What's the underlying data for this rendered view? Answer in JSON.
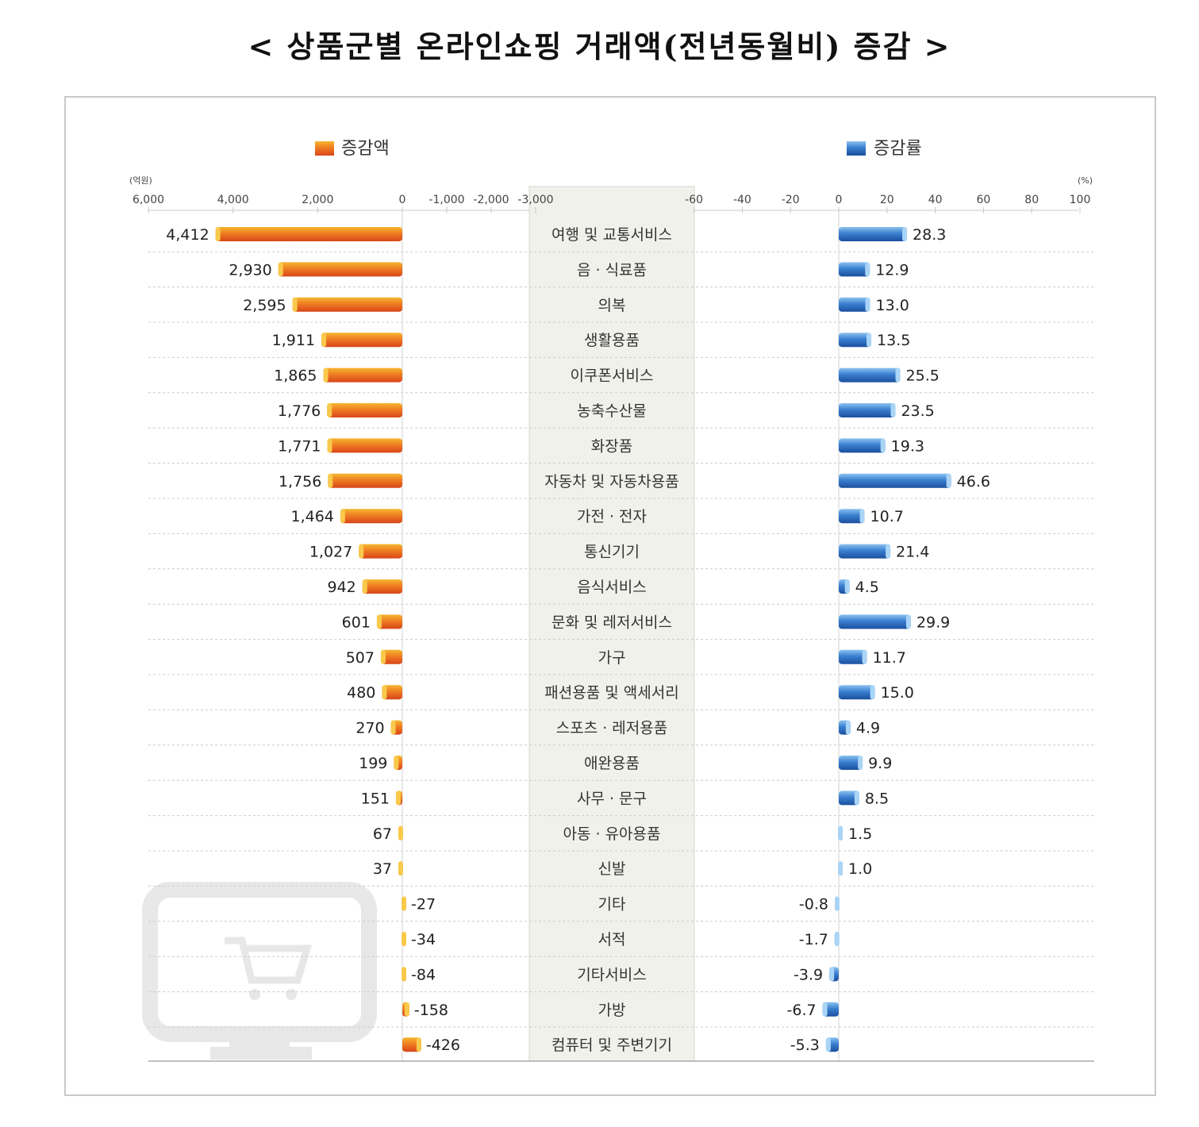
{
  "title": "< 상품군별 온라인쇼핑 거래액(전년동월비) 증감 >",
  "legend": {
    "amount_label": "증감액",
    "rate_label": "증감률"
  },
  "colors": {
    "amount_bar_main": "#e8561e",
    "amount_bar_light": "#f6b631",
    "rate_bar_main": "#1e5aad",
    "rate_bar_light": "#8cc2f0",
    "center_band": "#f1f1ec",
    "grid": "#bdbdbd"
  },
  "chart_data": [
    {
      "type": "bar",
      "orientation": "horizontal",
      "name": "증감액",
      "unit_label": "(억원)",
      "reversed_axis": true,
      "xlim": [
        6000,
        -3000
      ],
      "ticks": [
        "6,000",
        "4,000",
        "2,000",
        "0",
        "-1,000",
        "-2,000",
        "-3,000"
      ],
      "tick_values": [
        6000,
        4000,
        2000,
        0,
        -1000,
        -2000,
        -3000
      ],
      "categories": [
        "여행 및 교통서비스",
        "음 · 식료품",
        "의복",
        "생활용품",
        "이쿠폰서비스",
        "농축수산물",
        "화장품",
        "자동차 및 자동차용품",
        "가전 · 전자",
        "통신기기",
        "음식서비스",
        "문화 및 레저서비스",
        "가구",
        "패션용품 및 액세서리",
        "스포츠 · 레저용품",
        "애완용품",
        "사무 · 문구",
        "아동 · 유아용품",
        "신발",
        "기타",
        "서적",
        "기타서비스",
        "가방",
        "컴퓨터 및 주변기기"
      ],
      "values": [
        4412,
        2930,
        2595,
        1911,
        1865,
        1776,
        1771,
        1756,
        1464,
        1027,
        942,
        601,
        507,
        480,
        270,
        199,
        151,
        67,
        37,
        -27,
        -34,
        -84,
        -158,
        -426
      ],
      "labels": [
        "4,412",
        "2,930",
        "2,595",
        "1,911",
        "1,865",
        "1,776",
        "1,771",
        "1,756",
        "1,464",
        "1,027",
        "942",
        "601",
        "507",
        "480",
        "270",
        "199",
        "151",
        "67",
        "37",
        "-27",
        "-34",
        "-84",
        "-158",
        "-426"
      ]
    },
    {
      "type": "bar",
      "orientation": "horizontal",
      "name": "증감률",
      "unit_label": "(%)",
      "xlim": [
        -60,
        100
      ],
      "ticks": [
        "-60",
        "-40",
        "-20",
        "0",
        "20",
        "40",
        "60",
        "80",
        "100"
      ],
      "tick_values": [
        -60,
        -40,
        -20,
        0,
        20,
        40,
        60,
        80,
        100
      ],
      "categories": [
        "여행 및 교통서비스",
        "음 · 식료품",
        "의복",
        "생활용품",
        "이쿠폰서비스",
        "농축수산물",
        "화장품",
        "자동차 및 자동차용품",
        "가전 · 전자",
        "통신기기",
        "음식서비스",
        "문화 및 레저서비스",
        "가구",
        "패션용품 및 액세서리",
        "스포츠 · 레저용품",
        "애완용품",
        "사무 · 문구",
        "아동 · 유아용품",
        "신발",
        "기타",
        "서적",
        "기타서비스",
        "가방",
        "컴퓨터 및 주변기기"
      ],
      "values": [
        28.3,
        12.9,
        13.0,
        13.5,
        25.5,
        23.5,
        19.3,
        46.6,
        10.7,
        21.4,
        4.5,
        29.9,
        11.7,
        15.0,
        4.9,
        9.9,
        8.5,
        1.5,
        1.0,
        -0.8,
        -1.7,
        -3.9,
        -6.7,
        -5.3
      ],
      "labels": [
        "28.3",
        "12.9",
        "13.0",
        "13.5",
        "25.5",
        "23.5",
        "19.3",
        "46.6",
        "10.7",
        "21.4",
        "4.5",
        "29.9",
        "11.7",
        "15.0",
        "4.9",
        "9.9",
        "8.5",
        "1.5",
        "1.0",
        "-0.8",
        "-1.7",
        "-3.9",
        "-6.7",
        "-5.3"
      ]
    }
  ]
}
